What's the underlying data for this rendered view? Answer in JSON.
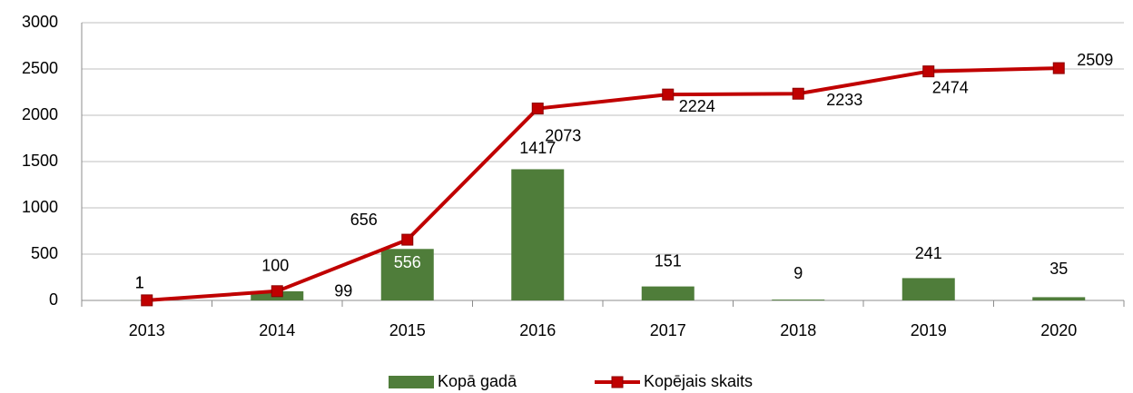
{
  "chart_data": {
    "type": "bar_line",
    "categories": [
      "2013",
      "2014",
      "2015",
      "2016",
      "2017",
      "2018",
      "2019",
      "2020"
    ],
    "series": [
      {
        "name": "Kopā gadā",
        "type": "bar",
        "color": "#4f7d3a",
        "values": [
          1,
          99,
          556,
          1417,
          151,
          9,
          241,
          35
        ]
      },
      {
        "name": "Kopējais skaits",
        "type": "line",
        "color": "#c00000",
        "values": [
          1,
          100,
          656,
          2073,
          2224,
          2233,
          2474,
          2509
        ]
      }
    ],
    "ylim": [
      0,
      3000
    ],
    "yticks": [
      0,
      500,
      1000,
      1500,
      2000,
      2500,
      3000
    ],
    "grid": true,
    "legend": "bottom"
  }
}
